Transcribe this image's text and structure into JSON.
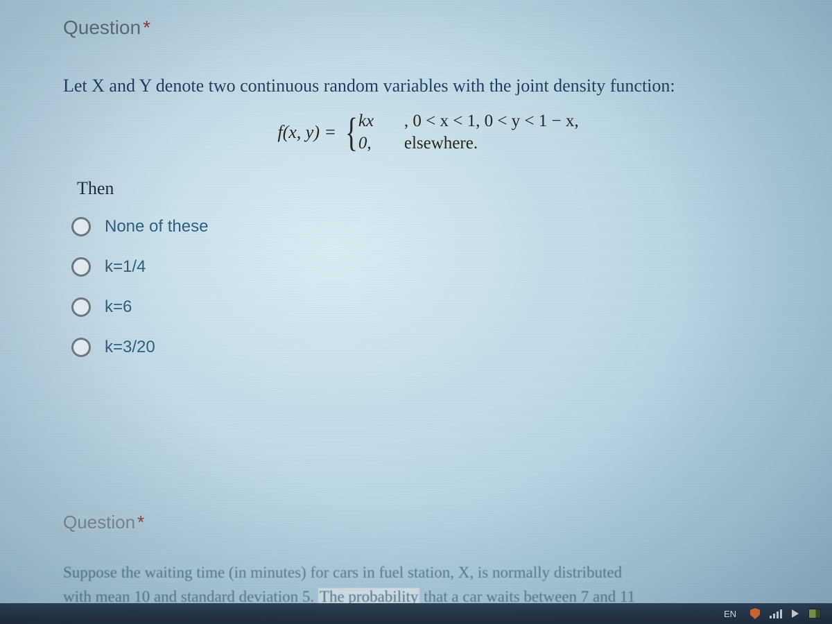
{
  "question1": {
    "header": "Question",
    "required_mark": "*",
    "prompt": "Let X and Y denote two continuous random variables with the joint density function:",
    "formula": {
      "lhs": "f(x, y) =",
      "case1_expr": "kx",
      "case1_cond": ",   0 < x < 1, 0 < y < 1 − x,",
      "case2_expr": "0,",
      "case2_cond": "elsewhere."
    },
    "then_label": "Then",
    "options": [
      {
        "label": "None of these"
      },
      {
        "label": "k=1/4"
      },
      {
        "label": "k=6"
      },
      {
        "label": "k=3/20"
      }
    ]
  },
  "question2": {
    "header": "Question",
    "required_mark": "*",
    "text_line1": "Suppose the waiting time (in minutes) for cars in fuel station, X, is normally distributed",
    "text_line2": "with mean 10 and standard deviation 5. The probability that a car waits between 7 and 11"
  },
  "taskbar": {
    "lang": "EN"
  },
  "colors": {
    "text_primary": "#1a3a5c",
    "text_muted": "#5a6b78",
    "option_text": "#2c5a7a",
    "asterisk": "#8a3a3a",
    "background_light": "#daedf5",
    "taskbar_bg": "#1a2a3a"
  }
}
